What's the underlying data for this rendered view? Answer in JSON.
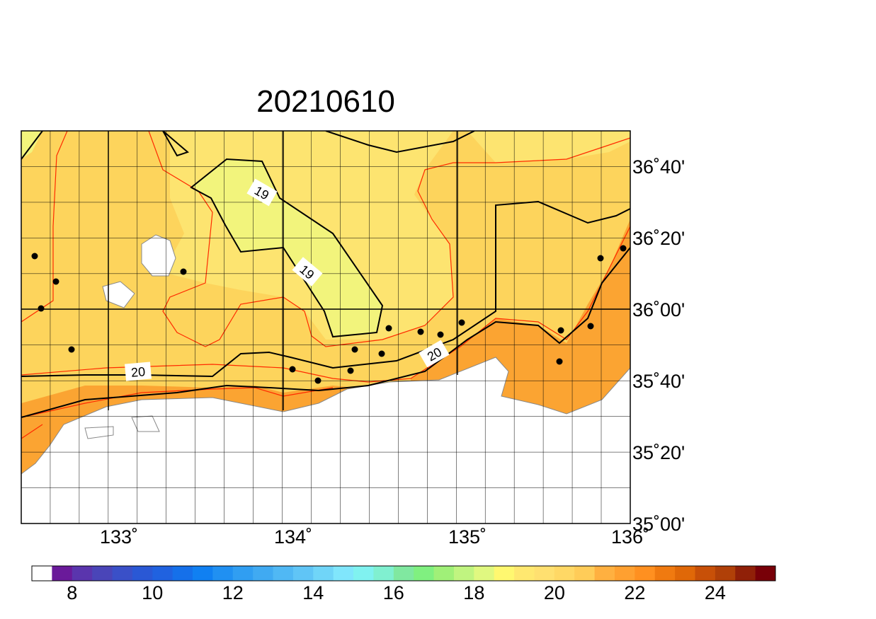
{
  "title": "20210610",
  "map": {
    "lon_labels": [
      "133˚",
      "134˚",
      "135˚",
      "136˚"
    ],
    "lat_labels": [
      "36˚40'",
      "36˚20'",
      "36˚00'",
      "35˚40'",
      "35˚20'",
      "35˚00'"
    ],
    "contour_labels": [
      "19",
      "19",
      "20",
      "20"
    ]
  },
  "colorbar": {
    "range": [
      7,
      25.5
    ],
    "colors": [
      "#ffffff",
      "#6a1a9a",
      "#5a35ad",
      "#4a45b8",
      "#3a50c8",
      "#2a58d5",
      "#2062e0",
      "#1570ea",
      "#1080f2",
      "#2090f2",
      "#309ef2",
      "#40aaf2",
      "#50b8f4",
      "#60c5f6",
      "#70d5f8",
      "#80e6fc",
      "#80f2f0",
      "#80f0d0",
      "#80e8a0",
      "#80f080",
      "#a0f078",
      "#c0f480",
      "#e0f880",
      "#fff870",
      "#ffe870",
      "#ffe070",
      "#ffd865",
      "#ffcc58",
      "#ffb040",
      "#ffa030",
      "#ff9020",
      "#f07a10",
      "#e06808",
      "#c85008",
      "#b04008",
      "#902008",
      "#780008"
    ],
    "ticks": [
      8,
      10,
      12,
      14,
      16,
      18,
      20,
      22,
      24
    ]
  }
}
